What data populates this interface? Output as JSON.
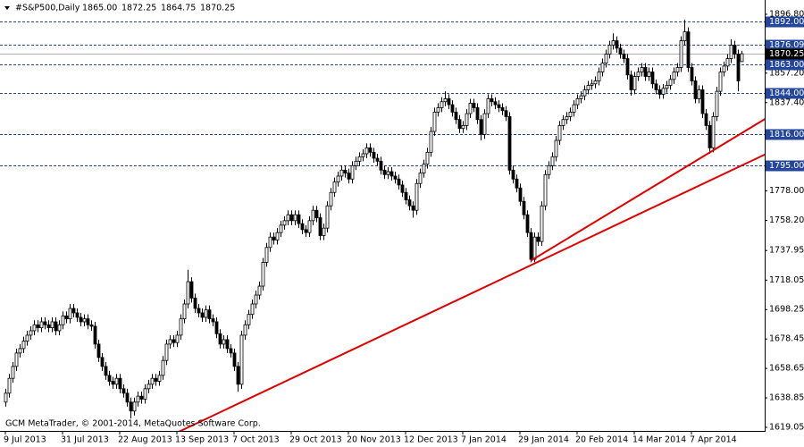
{
  "chart_data": {
    "type": "candlestick",
    "symbol": "#S&P500,Daily",
    "header_ohlc": [
      "1865.00",
      "1872.25",
      "1864.75",
      "1870.25"
    ],
    "footer": "GCM MetaTrader, © 2001-2014, MetaQuotes Software Corp.",
    "ylim": [
      1616.64,
      1906.4
    ],
    "yticks": [
      {
        "value": 1896.8,
        "label": "1896.80"
      },
      {
        "value": 1857.2,
        "label": "1857.20"
      },
      {
        "value": 1837.4,
        "label": "1837.40"
      },
      {
        "value": 1778,
        "label": "1778.00"
      },
      {
        "value": 1758.2,
        "label": "1758.20"
      },
      {
        "value": 1737.95,
        "label": "1737.95"
      },
      {
        "value": 1718.05,
        "label": "1718.05"
      },
      {
        "value": 1698.25,
        "label": "1698.25"
      },
      {
        "value": 1678.45,
        "label": "1678.45"
      },
      {
        "value": 1658.65,
        "label": "1658.65"
      },
      {
        "value": 1638.85,
        "label": "1638.85"
      },
      {
        "value": 1619.05,
        "label": "1619.05"
      }
    ],
    "xticks": [
      {
        "value": 0,
        "label": "9 Jul 2013"
      },
      {
        "value": 16,
        "label": "31 Jul 2013"
      },
      {
        "value": 32,
        "label": "22 Aug 2013"
      },
      {
        "value": 48,
        "label": "13 Sep 2013"
      },
      {
        "value": 64,
        "label": "7 Oct 2013"
      },
      {
        "value": 80,
        "label": "29 Oct 2013"
      },
      {
        "value": 96,
        "label": "20 Nov 2013"
      },
      {
        "value": 112,
        "label": "12 Dec 2013"
      },
      {
        "value": 128,
        "label": "7 Jan 2014"
      },
      {
        "value": 144,
        "label": "29 Jan 2014"
      },
      {
        "value": 160,
        "label": "20 Feb 2014"
      },
      {
        "value": 176,
        "label": "14 Mar 2014"
      },
      {
        "value": 192,
        "label": "7 Apr 2014"
      }
    ],
    "levels": {
      "color": "#24479c",
      "values": [
        1892,
        1876.09,
        1863,
        1844,
        1816,
        1795
      ],
      "value_labels": [
        "1892.00",
        "1876.09",
        "1863.00",
        "1844.00",
        "1816.00",
        "1795.00"
      ]
    },
    "current_price": {
      "value": 1870.25,
      "label": "1870.25"
    },
    "trendlines": [
      {
        "color": "#e00000",
        "x": [
          48.5,
          213
        ],
        "y": [
          1616,
          1803
        ]
      },
      {
        "color": "#e00000",
        "x": [
          147,
          213
        ],
        "y": [
          1731,
          1827
        ]
      }
    ],
    "ohlc": [
      [
        1636,
        1645,
        1633,
        1642
      ],
      [
        1642,
        1655,
        1639,
        1652
      ],
      [
        1652,
        1663,
        1649,
        1660
      ],
      [
        1660,
        1672,
        1657,
        1669
      ],
      [
        1669,
        1675,
        1666,
        1672
      ],
      [
        1672,
        1680,
        1669,
        1677
      ],
      [
        1677,
        1684,
        1674,
        1681
      ],
      [
        1681,
        1687,
        1678,
        1684
      ],
      [
        1684,
        1691,
        1681,
        1688
      ],
      [
        1688,
        1691,
        1683,
        1686
      ],
      [
        1686,
        1693,
        1683,
        1690
      ],
      [
        1690,
        1693,
        1685,
        1688
      ],
      [
        1688,
        1691,
        1683,
        1686
      ],
      [
        1686,
        1693,
        1683,
        1690
      ],
      [
        1690,
        1693,
        1681,
        1684
      ],
      [
        1684,
        1691,
        1681,
        1688
      ],
      [
        1688,
        1697,
        1685,
        1694
      ],
      [
        1694,
        1697,
        1689,
        1692
      ],
      [
        1692,
        1702,
        1689,
        1699
      ],
      [
        1699,
        1702,
        1693,
        1696
      ],
      [
        1696,
        1699,
        1690,
        1693
      ],
      [
        1693,
        1696,
        1687,
        1690
      ],
      [
        1690,
        1695,
        1687,
        1692
      ],
      [
        1692,
        1695,
        1685,
        1688
      ],
      [
        1688,
        1691,
        1684,
        1687
      ],
      [
        1687,
        1690,
        1672,
        1675
      ],
      [
        1675,
        1678,
        1663,
        1666
      ],
      [
        1666,
        1669,
        1657,
        1660
      ],
      [
        1660,
        1663,
        1651,
        1654
      ],
      [
        1654,
        1657,
        1647,
        1650
      ],
      [
        1650,
        1653,
        1645,
        1648
      ],
      [
        1648,
        1655,
        1645,
        1652
      ],
      [
        1652,
        1655,
        1642,
        1645
      ],
      [
        1645,
        1648,
        1639,
        1642
      ],
      [
        1642,
        1645,
        1633,
        1636
      ],
      [
        1636,
        1639,
        1625,
        1630
      ],
      [
        1630,
        1639,
        1627,
        1636
      ],
      [
        1636,
        1643,
        1633,
        1640
      ],
      [
        1640,
        1643,
        1635,
        1638
      ],
      [
        1638,
        1648,
        1635,
        1645
      ],
      [
        1645,
        1651,
        1642,
        1648
      ],
      [
        1648,
        1655,
        1645,
        1652
      ],
      [
        1652,
        1655,
        1647,
        1650
      ],
      [
        1650,
        1657,
        1647,
        1654
      ],
      [
        1654,
        1667,
        1651,
        1664
      ],
      [
        1664,
        1678,
        1661,
        1675
      ],
      [
        1675,
        1681,
        1672,
        1678
      ],
      [
        1678,
        1681,
        1673,
        1676
      ],
      [
        1676,
        1684,
        1673,
        1681
      ],
      [
        1681,
        1695,
        1678,
        1692
      ],
      [
        1692,
        1705,
        1689,
        1702
      ],
      [
        1702,
        1725,
        1699,
        1717
      ],
      [
        1717,
        1720,
        1703,
        1706
      ],
      [
        1706,
        1709,
        1696,
        1699
      ],
      [
        1699,
        1702,
        1693,
        1696
      ],
      [
        1696,
        1699,
        1690,
        1693
      ],
      [
        1693,
        1701,
        1690,
        1698
      ],
      [
        1698,
        1701,
        1689,
        1692
      ],
      [
        1692,
        1695,
        1687,
        1690
      ],
      [
        1690,
        1693,
        1679,
        1682
      ],
      [
        1682,
        1685,
        1672,
        1675
      ],
      [
        1675,
        1681,
        1672,
        1678
      ],
      [
        1678,
        1681,
        1669,
        1672
      ],
      [
        1672,
        1675,
        1666,
        1669
      ],
      [
        1669,
        1672,
        1657,
        1660
      ],
      [
        1660,
        1663,
        1643,
        1648
      ],
      [
        1648,
        1684,
        1645,
        1681
      ],
      [
        1681,
        1691,
        1678,
        1688
      ],
      [
        1688,
        1698,
        1685,
        1695
      ],
      [
        1695,
        1705,
        1692,
        1702
      ],
      [
        1702,
        1711,
        1699,
        1708
      ],
      [
        1708,
        1717,
        1705,
        1714
      ],
      [
        1714,
        1733,
        1711,
        1730
      ],
      [
        1730,
        1743,
        1727,
        1740
      ],
      [
        1740,
        1750,
        1737,
        1747
      ],
      [
        1747,
        1750,
        1742,
        1745
      ],
      [
        1745,
        1753,
        1742,
        1750
      ],
      [
        1750,
        1758,
        1747,
        1755
      ],
      [
        1755,
        1761,
        1752,
        1758
      ],
      [
        1758,
        1765,
        1755,
        1762
      ],
      [
        1762,
        1765,
        1755,
        1758
      ],
      [
        1758,
        1765,
        1755,
        1762
      ],
      [
        1762,
        1765,
        1753,
        1756
      ],
      [
        1756,
        1759,
        1749,
        1752
      ],
      [
        1752,
        1755,
        1747,
        1750
      ],
      [
        1750,
        1761,
        1747,
        1758
      ],
      [
        1758,
        1768,
        1755,
        1765
      ],
      [
        1765,
        1768,
        1757,
        1760
      ],
      [
        1760,
        1763,
        1745,
        1748
      ],
      [
        1748,
        1756,
        1745,
        1753
      ],
      [
        1753,
        1771,
        1750,
        1768
      ],
      [
        1768,
        1780,
        1765,
        1777
      ],
      [
        1777,
        1787,
        1774,
        1784
      ],
      [
        1784,
        1791,
        1781,
        1788
      ],
      [
        1788,
        1795,
        1785,
        1792
      ],
      [
        1792,
        1795,
        1787,
        1790
      ],
      [
        1790,
        1793,
        1783,
        1786
      ],
      [
        1786,
        1798,
        1783,
        1795
      ],
      [
        1795,
        1801,
        1792,
        1798
      ],
      [
        1798,
        1804,
        1795,
        1801
      ],
      [
        1801,
        1806,
        1798,
        1803
      ],
      [
        1803,
        1810,
        1800,
        1807
      ],
      [
        1807,
        1810,
        1801,
        1804
      ],
      [
        1804,
        1807,
        1797,
        1800
      ],
      [
        1800,
        1803,
        1795,
        1798
      ],
      [
        1798,
        1801,
        1789,
        1792
      ],
      [
        1792,
        1795,
        1786,
        1789
      ],
      [
        1789,
        1794,
        1786,
        1791
      ],
      [
        1791,
        1794,
        1785,
        1788
      ],
      [
        1788,
        1791,
        1783,
        1786
      ],
      [
        1786,
        1789,
        1779,
        1782
      ],
      [
        1782,
        1785,
        1774,
        1777
      ],
      [
        1777,
        1780,
        1769,
        1772
      ],
      [
        1772,
        1775,
        1765,
        1768
      ],
      [
        1768,
        1771,
        1760,
        1765
      ],
      [
        1765,
        1786,
        1762,
        1783
      ],
      [
        1783,
        1793,
        1780,
        1790
      ],
      [
        1790,
        1799,
        1787,
        1796
      ],
      [
        1796,
        1807,
        1793,
        1804
      ],
      [
        1804,
        1821,
        1801,
        1818
      ],
      [
        1818,
        1834,
        1815,
        1831
      ],
      [
        1831,
        1837,
        1828,
        1834
      ],
      [
        1834,
        1841,
        1831,
        1838
      ],
      [
        1838,
        1845,
        1835,
        1840
      ],
      [
        1840,
        1843,
        1833,
        1836
      ],
      [
        1836,
        1839,
        1828,
        1831
      ],
      [
        1831,
        1834,
        1823,
        1826
      ],
      [
        1826,
        1829,
        1817,
        1820
      ],
      [
        1820,
        1825,
        1817,
        1822
      ],
      [
        1822,
        1833,
        1819,
        1830
      ],
      [
        1830,
        1840,
        1827,
        1837
      ],
      [
        1837,
        1840,
        1831,
        1834
      ],
      [
        1834,
        1837,
        1823,
        1826
      ],
      [
        1826,
        1829,
        1812,
        1816
      ],
      [
        1816,
        1833,
        1813,
        1830
      ],
      [
        1830,
        1843,
        1827,
        1840
      ],
      [
        1840,
        1843,
        1835,
        1838
      ],
      [
        1838,
        1841,
        1833,
        1836
      ],
      [
        1836,
        1839,
        1831,
        1834
      ],
      [
        1834,
        1837,
        1829,
        1832
      ],
      [
        1832,
        1835,
        1825,
        1828
      ],
      [
        1828,
        1831,
        1789,
        1792
      ],
      [
        1792,
        1795,
        1783,
        1786
      ],
      [
        1786,
        1789,
        1777,
        1780
      ],
      [
        1780,
        1783,
        1768,
        1771
      ],
      [
        1771,
        1774,
        1759,
        1762
      ],
      [
        1762,
        1765,
        1747,
        1750
      ],
      [
        1750,
        1753,
        1730,
        1732
      ],
      [
        1732,
        1750,
        1730,
        1747
      ],
      [
        1747,
        1750,
        1741,
        1744
      ],
      [
        1744,
        1771,
        1741,
        1768
      ],
      [
        1768,
        1792,
        1765,
        1789
      ],
      [
        1789,
        1798,
        1786,
        1795
      ],
      [
        1795,
        1804,
        1792,
        1801
      ],
      [
        1801,
        1815,
        1798,
        1812
      ],
      [
        1812,
        1825,
        1809,
        1822
      ],
      [
        1822,
        1829,
        1819,
        1826
      ],
      [
        1826,
        1831,
        1823,
        1828
      ],
      [
        1828,
        1834,
        1825,
        1831
      ],
      [
        1831,
        1839,
        1828,
        1836
      ],
      [
        1836,
        1843,
        1833,
        1840
      ],
      [
        1840,
        1845,
        1837,
        1842
      ],
      [
        1842,
        1849,
        1839,
        1846
      ],
      [
        1846,
        1852,
        1843,
        1849
      ],
      [
        1849,
        1853,
        1846,
        1850
      ],
      [
        1850,
        1855,
        1847,
        1852
      ],
      [
        1852,
        1861,
        1849,
        1858
      ],
      [
        1858,
        1867,
        1855,
        1864
      ],
      [
        1864,
        1873,
        1861,
        1870
      ],
      [
        1870,
        1879,
        1867,
        1876
      ],
      [
        1876,
        1884,
        1873,
        1879
      ],
      [
        1879,
        1882,
        1871,
        1874
      ],
      [
        1874,
        1877,
        1867,
        1870
      ],
      [
        1870,
        1873,
        1864,
        1867
      ],
      [
        1867,
        1870,
        1853,
        1856
      ],
      [
        1856,
        1859,
        1842,
        1846
      ],
      [
        1846,
        1858,
        1843,
        1855
      ],
      [
        1855,
        1861,
        1852,
        1858
      ],
      [
        1858,
        1864,
        1855,
        1861
      ],
      [
        1861,
        1864,
        1852,
        1855
      ],
      [
        1855,
        1861,
        1852,
        1858
      ],
      [
        1858,
        1861,
        1847,
        1850
      ],
      [
        1850,
        1853,
        1843,
        1846
      ],
      [
        1846,
        1849,
        1840,
        1843
      ],
      [
        1843,
        1850,
        1840,
        1847
      ],
      [
        1847,
        1852,
        1844,
        1849
      ],
      [
        1849,
        1856,
        1846,
        1853
      ],
      [
        1853,
        1861,
        1850,
        1858
      ],
      [
        1858,
        1864,
        1855,
        1861
      ],
      [
        1861,
        1882,
        1858,
        1879
      ],
      [
        1879,
        1893,
        1876,
        1885
      ],
      [
        1885,
        1888,
        1858,
        1861
      ],
      [
        1861,
        1864,
        1849,
        1852
      ],
      [
        1852,
        1855,
        1837,
        1840
      ],
      [
        1840,
        1849,
        1837,
        1846
      ],
      [
        1846,
        1849,
        1827,
        1830
      ],
      [
        1830,
        1833,
        1819,
        1822
      ],
      [
        1822,
        1825,
        1803,
        1807
      ],
      [
        1807,
        1831,
        1804,
        1828
      ],
      [
        1828,
        1848,
        1825,
        1845
      ],
      [
        1845,
        1861,
        1842,
        1858
      ],
      [
        1858,
        1865,
        1855,
        1862
      ],
      [
        1862,
        1870,
        1859,
        1867
      ],
      [
        1867,
        1880,
        1864,
        1876
      ],
      [
        1876,
        1879,
        1867,
        1870
      ],
      [
        1870,
        1873,
        1845,
        1852
      ],
      [
        1865,
        1872.25,
        1864.75,
        1870.25
      ]
    ]
  }
}
